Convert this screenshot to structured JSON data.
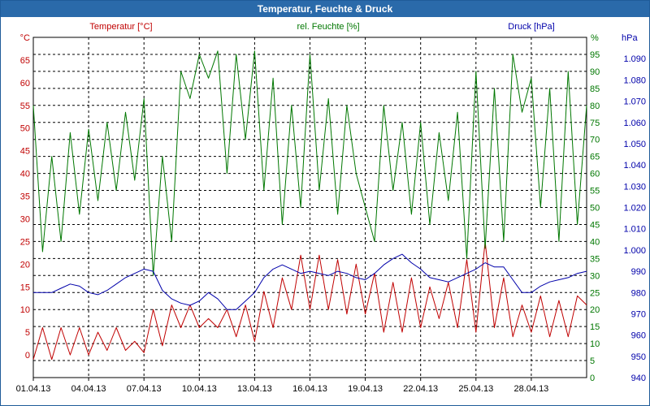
{
  "window": {
    "title": "Temperatur, Feuchte & Druck"
  },
  "colors": {
    "temperature": "#c00000",
    "humidity": "#007700",
    "pressure": "#0000aa",
    "titlebar": "#2a6aaa"
  },
  "chart_data": {
    "type": "line",
    "title": "Temperatur, Feuchte & Druck",
    "grid": true,
    "x_tick_labels": [
      "01.04.13",
      "04.04.13",
      "07.04.13",
      "10.04.13",
      "13.04.13",
      "16.04.13",
      "19.04.13",
      "22.04.13",
      "25.04.13",
      "28.04.13"
    ],
    "x_range": [
      "01.04.13 00:00",
      "01.05.13 00:00"
    ],
    "axes": {
      "temperature": {
        "label": "Temperatur [°C]",
        "unit": "°C",
        "ylim": [
          -5,
          70
        ],
        "ticks": [
          "0",
          "5",
          "10",
          "15",
          "20",
          "25",
          "30",
          "35",
          "40",
          "45",
          "50",
          "55",
          "60",
          "65"
        ]
      },
      "humidity": {
        "label": "rel. Feuchte [%]",
        "unit": "%",
        "ylim": [
          0,
          100
        ],
        "ticks": [
          "0",
          "5",
          "10",
          "15",
          "20",
          "25",
          "30",
          "35",
          "40",
          "45",
          "50",
          "55",
          "60",
          "65",
          "70",
          "75",
          "80",
          "85",
          "90",
          "95"
        ]
      },
      "pressure": {
        "label": "Druck [hPa]",
        "unit": "hPa",
        "ylim": [
          940,
          1100
        ],
        "ticks": [
          "940",
          "950",
          "960",
          "970",
          "980",
          "990",
          "1.000",
          "1.010",
          "1.020",
          "1.030",
          "1.040",
          "1.050",
          "1.060",
          "1.070",
          "1.080",
          "1.090"
        ]
      }
    },
    "series": [
      {
        "name": "Temperatur [°C]",
        "axis": "temperature",
        "color": "#c00000",
        "x": [
          "01.04.13 00:00",
          "01.04.13 12:00",
          "02.04.13 00:00",
          "02.04.13 12:00",
          "03.04.13 00:00",
          "03.04.13 12:00",
          "04.04.13 00:00",
          "04.04.13 12:00",
          "05.04.13 00:00",
          "05.04.13 12:00",
          "06.04.13 00:00",
          "06.04.13 12:00",
          "07.04.13 00:00",
          "07.04.13 12:00",
          "08.04.13 00:00",
          "08.04.13 12:00",
          "09.04.13 00:00",
          "09.04.13 12:00",
          "10.04.13 00:00",
          "10.04.13 12:00",
          "11.04.13 00:00",
          "11.04.13 12:00",
          "12.04.13 00:00",
          "12.04.13 12:00",
          "13.04.13 00:00",
          "13.04.13 12:00",
          "14.04.13 00:00",
          "14.04.13 12:00",
          "15.04.13 00:00",
          "15.04.13 12:00",
          "16.04.13 00:00",
          "16.04.13 12:00",
          "17.04.13 00:00",
          "17.04.13 12:00",
          "18.04.13 00:00",
          "18.04.13 12:00",
          "19.04.13 00:00",
          "19.04.13 12:00",
          "20.04.13 00:00",
          "20.04.13 12:00",
          "21.04.13 00:00",
          "21.04.13 12:00",
          "22.04.13 00:00",
          "22.04.13 12:00",
          "23.04.13 00:00",
          "23.04.13 12:00",
          "24.04.13 00:00",
          "24.04.13 12:00",
          "25.04.13 00:00",
          "25.04.13 12:00",
          "26.04.13 00:00",
          "26.04.13 12:00",
          "27.04.13 00:00",
          "27.04.13 12:00",
          "28.04.13 00:00",
          "28.04.13 12:00",
          "29.04.13 00:00",
          "29.04.13 12:00",
          "30.04.13 00:00",
          "30.04.13 12:00",
          "01.05.13 00:00"
        ],
        "values": [
          -1,
          6,
          -1,
          6,
          0,
          6,
          0,
          5,
          1,
          6,
          1,
          3,
          0.5,
          10,
          2,
          11,
          6,
          11,
          6,
          8,
          6,
          10,
          4,
          11,
          3,
          14,
          6,
          17,
          10,
          22,
          10,
          22,
          10,
          21,
          9,
          20,
          9,
          18,
          5,
          16,
          5,
          17,
          6,
          15,
          8,
          16,
          6,
          21,
          5,
          25,
          6,
          17,
          4,
          11,
          5,
          13,
          4,
          12,
          4,
          13,
          11
        ]
      },
      {
        "name": "rel. Feuchte [%]",
        "axis": "humidity",
        "color": "#007700",
        "x": [
          "01.04.13 00:00",
          "01.04.13 12:00",
          "02.04.13 00:00",
          "02.04.13 12:00",
          "03.04.13 00:00",
          "03.04.13 12:00",
          "04.04.13 00:00",
          "04.04.13 12:00",
          "05.04.13 00:00",
          "05.04.13 12:00",
          "06.04.13 00:00",
          "06.04.13 12:00",
          "07.04.13 00:00",
          "07.04.13 12:00",
          "08.04.13 00:00",
          "08.04.13 12:00",
          "09.04.13 00:00",
          "09.04.13 12:00",
          "10.04.13 00:00",
          "10.04.13 12:00",
          "11.04.13 00:00",
          "11.04.13 12:00",
          "12.04.13 00:00",
          "12.04.13 12:00",
          "13.04.13 00:00",
          "13.04.13 12:00",
          "14.04.13 00:00",
          "14.04.13 12:00",
          "15.04.13 00:00",
          "15.04.13 12:00",
          "16.04.13 00:00",
          "16.04.13 12:00",
          "17.04.13 00:00",
          "17.04.13 12:00",
          "18.04.13 00:00",
          "18.04.13 12:00",
          "19.04.13 00:00",
          "19.04.13 12:00",
          "20.04.13 00:00",
          "20.04.13 12:00",
          "21.04.13 00:00",
          "21.04.13 12:00",
          "22.04.13 00:00",
          "22.04.13 12:00",
          "23.04.13 00:00",
          "23.04.13 12:00",
          "24.04.13 00:00",
          "24.04.13 12:00",
          "25.04.13 00:00",
          "25.04.13 12:00",
          "26.04.13 00:00",
          "26.04.13 12:00",
          "27.04.13 00:00",
          "27.04.13 12:00",
          "28.04.13 00:00",
          "28.04.13 12:00",
          "29.04.13 00:00",
          "29.04.13 12:00",
          "30.04.13 00:00",
          "30.04.13 12:00",
          "01.05.13 00:00"
        ],
        "values": [
          80,
          37,
          65,
          40,
          72,
          48,
          73,
          52,
          75,
          55,
          78,
          58,
          82,
          30,
          65,
          40,
          90,
          82,
          95,
          88,
          96,
          60,
          95,
          70,
          96,
          55,
          88,
          45,
          80,
          50,
          95,
          55,
          82,
          48,
          80,
          60,
          50,
          40,
          80,
          55,
          75,
          48,
          75,
          45,
          72,
          52,
          78,
          35,
          90,
          38,
          85,
          40,
          95,
          78,
          88,
          50,
          85,
          40,
          90,
          45,
          80
        ]
      },
      {
        "name": "Druck [hPa]",
        "axis": "pressure",
        "color": "#0000aa",
        "x": [
          "01.04.13 00:00",
          "01.04.13 12:00",
          "02.04.13 00:00",
          "02.04.13 12:00",
          "03.04.13 00:00",
          "03.04.13 12:00",
          "04.04.13 00:00",
          "04.04.13 12:00",
          "05.04.13 00:00",
          "05.04.13 12:00",
          "06.04.13 00:00",
          "06.04.13 12:00",
          "07.04.13 00:00",
          "07.04.13 12:00",
          "08.04.13 00:00",
          "08.04.13 12:00",
          "09.04.13 00:00",
          "09.04.13 12:00",
          "10.04.13 00:00",
          "10.04.13 12:00",
          "11.04.13 00:00",
          "11.04.13 12:00",
          "12.04.13 00:00",
          "12.04.13 12:00",
          "13.04.13 00:00",
          "13.04.13 12:00",
          "14.04.13 00:00",
          "14.04.13 12:00",
          "15.04.13 00:00",
          "15.04.13 12:00",
          "16.04.13 00:00",
          "16.04.13 12:00",
          "17.04.13 00:00",
          "17.04.13 12:00",
          "18.04.13 00:00",
          "18.04.13 12:00",
          "19.04.13 00:00",
          "19.04.13 12:00",
          "20.04.13 00:00",
          "20.04.13 12:00",
          "21.04.13 00:00",
          "21.04.13 12:00",
          "22.04.13 00:00",
          "22.04.13 12:00",
          "23.04.13 00:00",
          "23.04.13 12:00",
          "24.04.13 00:00",
          "24.04.13 12:00",
          "25.04.13 00:00",
          "25.04.13 12:00",
          "26.04.13 00:00",
          "26.04.13 12:00",
          "27.04.13 00:00",
          "27.04.13 12:00",
          "28.04.13 00:00",
          "28.04.13 12:00",
          "29.04.13 00:00",
          "29.04.13 12:00",
          "30.04.13 00:00",
          "30.04.13 12:00",
          "01.05.13 00:00"
        ],
        "values": [
          980,
          980,
          980,
          982,
          984,
          983,
          980,
          979,
          981,
          984,
          987,
          989,
          991,
          990,
          981,
          977,
          975,
          974,
          976,
          980,
          977,
          972,
          972,
          976,
          980,
          987,
          991,
          993,
          991,
          989,
          990,
          989,
          988,
          990,
          989,
          987,
          986,
          989,
          993,
          996,
          998,
          994,
          991,
          987,
          986,
          985,
          987,
          989,
          991,
          994,
          992,
          992,
          986,
          980,
          980,
          983,
          985,
          986,
          987,
          989,
          990
        ]
      }
    ]
  }
}
